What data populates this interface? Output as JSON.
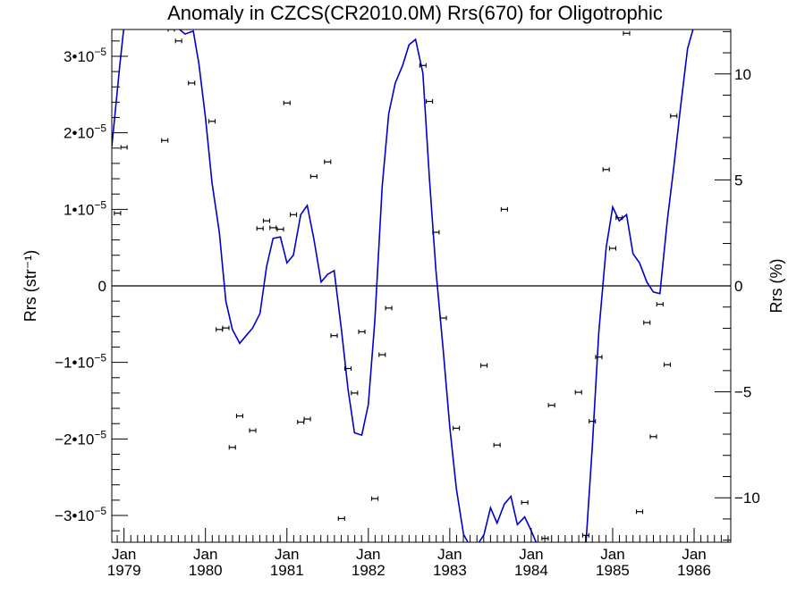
{
  "chart_data": {
    "type": "scatter",
    "title": "Anomaly in CZCS(CR2010.0M) Rrs(670) for Oligotrophic",
    "ylabel": "Rrs (str⁻¹)",
    "y2label": "Rrs (%)",
    "x_unit": "decimal year",
    "xlim": [
      1978.85,
      1986.45
    ],
    "ylim": [
      -3.35e-05,
      3.35e-05
    ],
    "y2lim": [
      -12.1,
      12.1
    ],
    "grid": false,
    "legend": "none",
    "colors": {
      "points": "#000000",
      "line": "#0000cc",
      "zero_line": "#000000"
    },
    "x_ticks": [
      {
        "value": 1979,
        "line1": "Jan",
        "line2": "1979"
      },
      {
        "value": 1980,
        "line1": "Jan",
        "line2": "1980"
      },
      {
        "value": 1981,
        "line1": "Jan",
        "line2": "1981"
      },
      {
        "value": 1982,
        "line1": "Jan",
        "line2": "1982"
      },
      {
        "value": 1983,
        "line1": "Jan",
        "line2": "1983"
      },
      {
        "value": 1984,
        "line1": "Jan",
        "line2": "1984"
      },
      {
        "value": 1985,
        "line1": "Jan",
        "line2": "1985"
      },
      {
        "value": 1986,
        "line1": "Jan",
        "line2": "1986"
      }
    ],
    "y_ticks": [
      {
        "value": 3e-05,
        "label": "3•10",
        "exp": "−5"
      },
      {
        "value": 2e-05,
        "label": "2•10",
        "exp": "−5"
      },
      {
        "value": 1e-05,
        "label": "1•10",
        "exp": "−5"
      },
      {
        "value": 0,
        "label": "0",
        "exp": ""
      },
      {
        "value": -1e-05,
        "label": "−1•10",
        "exp": "−5"
      },
      {
        "value": -2e-05,
        "label": "−2•10",
        "exp": "−5"
      },
      {
        "value": -3e-05,
        "label": "−3•10",
        "exp": "−5"
      }
    ],
    "y2_ticks": [
      {
        "value": 10,
        "label": "10"
      },
      {
        "value": 5,
        "label": "5"
      },
      {
        "value": 0,
        "label": "0"
      },
      {
        "value": -5,
        "label": "−5"
      },
      {
        "value": -10,
        "label": "−10"
      }
    ],
    "series": [
      {
        "type": "scatter_errorbar",
        "points": [
          [
            1978.92,
            9.5e-06
          ],
          [
            1979.0,
            1.81e-05
          ],
          [
            1979.5,
            1.9e-05
          ],
          [
            1979.58,
            3.35e-05
          ],
          [
            1979.67,
            3.2e-05
          ],
          [
            1979.83,
            2.65e-05
          ],
          [
            1980.08,
            2.15e-05
          ],
          [
            1980.17,
            -5.7e-06
          ],
          [
            1980.25,
            -5.5e-06
          ],
          [
            1980.33,
            -2.11e-05
          ],
          [
            1980.42,
            -1.7e-05
          ],
          [
            1980.58,
            -1.89e-05
          ],
          [
            1980.67,
            7.5e-06
          ],
          [
            1980.75,
            8.5e-06
          ],
          [
            1980.83,
            7.6e-06
          ],
          [
            1980.92,
            7.4e-06
          ],
          [
            1981.0,
            2.39e-05
          ],
          [
            1981.08,
            9.3e-06
          ],
          [
            1981.17,
            -1.78e-05
          ],
          [
            1981.25,
            -1.74e-05
          ],
          [
            1981.33,
            1.43e-05
          ],
          [
            1981.5,
            1.62e-05
          ],
          [
            1981.58,
            -6.5e-06
          ],
          [
            1981.67,
            -3.04e-05
          ],
          [
            1981.75,
            -1.08e-05
          ],
          [
            1981.83,
            -1.4e-05
          ],
          [
            1981.92,
            -6e-06
          ],
          [
            1982.08,
            -2.78e-05
          ],
          [
            1982.17,
            -9e-06
          ],
          [
            1982.25,
            -2.9e-06
          ],
          [
            1982.67,
            2.88e-05
          ],
          [
            1982.75,
            2.41e-05
          ],
          [
            1982.83,
            7e-06
          ],
          [
            1982.92,
            -4.2e-06
          ],
          [
            1983.08,
            -1.86e-05
          ],
          [
            1983.42,
            -1.04e-05
          ],
          [
            1983.58,
            -2.08e-05
          ],
          [
            1983.67,
            1e-05
          ],
          [
            1983.92,
            -2.83e-05
          ],
          [
            1984.17,
            -3.3e-05
          ],
          [
            1984.25,
            -1.56e-05
          ],
          [
            1984.58,
            -1.39e-05
          ],
          [
            1984.67,
            -3.26e-05
          ],
          [
            1984.75,
            -1.77e-05
          ],
          [
            1984.83,
            -9.3e-06
          ],
          [
            1984.92,
            1.52e-05
          ],
          [
            1985.0,
            4.9e-06
          ],
          [
            1985.08,
            8.9e-06
          ],
          [
            1985.17,
            3.3e-05
          ],
          [
            1985.33,
            -2.95e-05
          ],
          [
            1985.42,
            -4.8e-06
          ],
          [
            1985.5,
            -1.97e-05
          ],
          [
            1985.58,
            -2.4e-06
          ],
          [
            1985.67,
            -1.03e-05
          ],
          [
            1985.75,
            2.22e-05
          ]
        ]
      },
      {
        "type": "line",
        "points": [
          [
            1978.85,
            1.82e-05
          ],
          [
            1978.95,
            2.9e-05
          ],
          [
            1979.0,
            3.4e-05
          ],
          [
            1979.63,
            3.4e-05
          ],
          [
            1979.67,
            3.36e-05
          ],
          [
            1979.75,
            3.29e-05
          ],
          [
            1979.85,
            3.33e-05
          ],
          [
            1979.92,
            2.9e-05
          ],
          [
            1980.0,
            2.2e-05
          ],
          [
            1980.08,
            1.35e-05
          ],
          [
            1980.17,
            7e-06
          ],
          [
            1980.25,
            -2e-06
          ],
          [
            1980.33,
            -5.7e-06
          ],
          [
            1980.42,
            -7.5e-06
          ],
          [
            1980.5,
            -6.5e-06
          ],
          [
            1980.58,
            -5.5e-06
          ],
          [
            1980.67,
            -3.6e-06
          ],
          [
            1980.75,
            2.5e-06
          ],
          [
            1980.83,
            6.2e-06
          ],
          [
            1980.92,
            6.4e-06
          ],
          [
            1981.0,
            3e-06
          ],
          [
            1981.08,
            4e-06
          ],
          [
            1981.17,
            9.3e-06
          ],
          [
            1981.25,
            1.05e-05
          ],
          [
            1981.33,
            6.2e-06
          ],
          [
            1981.42,
            5e-07
          ],
          [
            1981.5,
            1.5e-06
          ],
          [
            1981.58,
            2e-06
          ],
          [
            1981.67,
            -5.8e-06
          ],
          [
            1981.75,
            -1.35e-05
          ],
          [
            1981.83,
            -1.92e-05
          ],
          [
            1981.92,
            -1.95e-05
          ],
          [
            1982.0,
            -1.55e-05
          ],
          [
            1982.08,
            -4.5e-06
          ],
          [
            1982.17,
            1.3e-05
          ],
          [
            1982.25,
            2.25e-05
          ],
          [
            1982.33,
            2.65e-05
          ],
          [
            1982.42,
            2.88e-05
          ],
          [
            1982.5,
            3.15e-05
          ],
          [
            1982.58,
            3.22e-05
          ],
          [
            1982.67,
            2.78e-05
          ],
          [
            1982.75,
            1.4e-05
          ],
          [
            1982.83,
            2e-06
          ],
          [
            1982.92,
            -8.5e-06
          ],
          [
            1983.0,
            -1.85e-05
          ],
          [
            1983.08,
            -2.65e-05
          ],
          [
            1983.17,
            -3.25e-05
          ],
          [
            1983.25,
            -3.4e-05
          ],
          [
            1983.33,
            -3.4e-05
          ],
          [
            1983.42,
            -3.25e-05
          ],
          [
            1983.5,
            -2.9e-05
          ],
          [
            1983.58,
            -3.1e-05
          ],
          [
            1983.67,
            -2.85e-05
          ],
          [
            1983.75,
            -2.75e-05
          ],
          [
            1983.83,
            -3.12e-05
          ],
          [
            1983.92,
            -3.02e-05
          ],
          [
            1984.0,
            -3.2e-05
          ],
          [
            1984.08,
            -3.4e-05
          ],
          [
            1984.67,
            -3.4e-05
          ],
          [
            1984.75,
            -2.1e-05
          ],
          [
            1984.83,
            -6e-06
          ],
          [
            1984.92,
            5e-06
          ],
          [
            1985.0,
            1.03e-05
          ],
          [
            1985.08,
            8.5e-06
          ],
          [
            1985.17,
            9.3e-06
          ],
          [
            1985.25,
            4.2e-06
          ],
          [
            1985.33,
            3e-06
          ],
          [
            1985.42,
            5e-07
          ],
          [
            1985.5,
            -8e-07
          ],
          [
            1985.58,
            -1e-06
          ],
          [
            1985.67,
            8.5e-06
          ],
          [
            1985.75,
            1.55e-05
          ],
          [
            1985.83,
            2.3e-05
          ],
          [
            1985.92,
            3.1e-05
          ],
          [
            1986.0,
            3.4e-05
          ]
        ]
      }
    ]
  }
}
